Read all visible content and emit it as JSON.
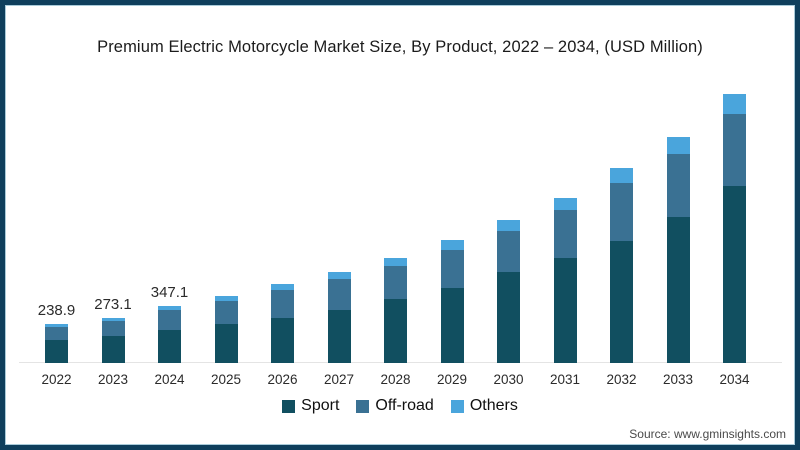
{
  "title": "Premium Electric Motorcycle Market Size, By Product, 2022 – 2034, (USD Million)",
  "source": "Source: www.gminsights.com",
  "colors": {
    "frame_border": "#0f3f5c",
    "frame_inner_line": "#a9cbd9",
    "sport": "#114f60",
    "offroad": "#3a7193",
    "others": "#4aa5dc",
    "axis_line": "#e4e4e4"
  },
  "legend": [
    {
      "label": "Sport",
      "color": "#114f60"
    },
    {
      "label": "Off-road",
      "color": "#3a7193"
    },
    {
      "label": "Others",
      "color": "#4aa5dc"
    }
  ],
  "chart_data": {
    "type": "bar",
    "stacked": true,
    "title": "Premium Electric Motorcycle Market Size, By Product, 2022 – 2034, (USD Million)",
    "xlabel": "",
    "ylabel": "USD Million",
    "ylim": [
      0,
      1650
    ],
    "grid": false,
    "legend_position": "bottom-center",
    "categories": [
      "2022",
      "2023",
      "2024",
      "2025",
      "2026",
      "2027",
      "2028",
      "2029",
      "2030",
      "2031",
      "2032",
      "2033",
      "2034"
    ],
    "series": [
      {
        "name": "Sport",
        "color": "#114f60",
        "values": [
          140.9,
          163.9,
          200.9,
          238,
          275,
          323,
          384,
          456,
          549,
          634,
          740,
          885,
          1068
        ]
      },
      {
        "name": "Off-road",
        "color": "#3a7193",
        "values": [
          79.6,
          88.0,
          121.8,
          137,
          169,
          186,
          203,
          230,
          250,
          291,
          349,
          378,
          435
        ]
      },
      {
        "name": "Others",
        "color": "#4aa5dc",
        "values": [
          18.4,
          21.2,
          24.4,
          30,
          36,
          41,
          48,
          56,
          65,
          75,
          88,
          102,
          122
        ]
      }
    ],
    "totals": [
      238.9,
      273.1,
      347.1,
      405,
      480,
      550,
      635,
      742,
      864,
      1000,
      1177,
      1365,
      1625
    ],
    "value_labels": [
      "238.9",
      "273.1",
      "347.1",
      "",
      "",
      "",
      "",
      "",
      "",
      "",
      "",
      "",
      ""
    ]
  }
}
